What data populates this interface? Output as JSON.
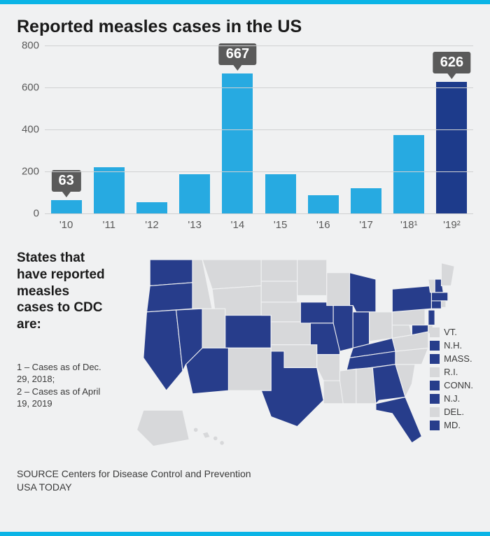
{
  "border_color": "#0ab4e6",
  "background_color": "#f0f1f2",
  "title": "Reported measles cases in the US",
  "chart": {
    "type": "bar",
    "categories": [
      "'10",
      "'11",
      "'12",
      "'13",
      "'14",
      "'15",
      "'16",
      "'17",
      "'18¹",
      "'19²"
    ],
    "values": [
      63,
      220,
      55,
      187,
      667,
      188,
      86,
      120,
      372,
      626
    ],
    "bar_colors": [
      "#27aae1",
      "#27aae1",
      "#27aae1",
      "#27aae1",
      "#27aae1",
      "#27aae1",
      "#27aae1",
      "#27aae1",
      "#27aae1",
      "#1d3b8b"
    ],
    "ylim": [
      0,
      800
    ],
    "ytick_step": 200,
    "grid_color": "#d0d1d2",
    "callouts": [
      {
        "index": 0,
        "label": "63"
      },
      {
        "index": 4,
        "label": "667"
      },
      {
        "index": 9,
        "label": "626"
      }
    ],
    "callout_bg": "#5a5a5a",
    "callout_text": "#ffffff"
  },
  "map_section": {
    "title": "States that have reported measles cases to CDC are:",
    "reported_color": "#273d8b",
    "not_reported_color": "#d7d8da",
    "legend": [
      {
        "label": "VT.",
        "reported": false
      },
      {
        "label": "N.H.",
        "reported": true
      },
      {
        "label": "MASS.",
        "reported": true
      },
      {
        "label": "R.I.",
        "reported": false
      },
      {
        "label": "CONN.",
        "reported": true
      },
      {
        "label": "N.J.",
        "reported": true
      },
      {
        "label": "DEL.",
        "reported": false
      },
      {
        "label": "MD.",
        "reported": true
      }
    ],
    "reported_states": [
      "WA",
      "OR",
      "CA",
      "NV",
      "AZ",
      "CO",
      "TX",
      "MO",
      "IA",
      "IL",
      "IN",
      "MI",
      "KY",
      "TN",
      "GA",
      "FL",
      "NY",
      "NJ",
      "CT",
      "MA",
      "NH",
      "MD"
    ]
  },
  "footnotes": {
    "one": "1 – Cases as of Dec. 29, 2018;",
    "two": "2 – Cases as of April 19, 2019"
  },
  "source": "SOURCE Centers for Disease Control and Prevention",
  "brand": "USA TODAY"
}
